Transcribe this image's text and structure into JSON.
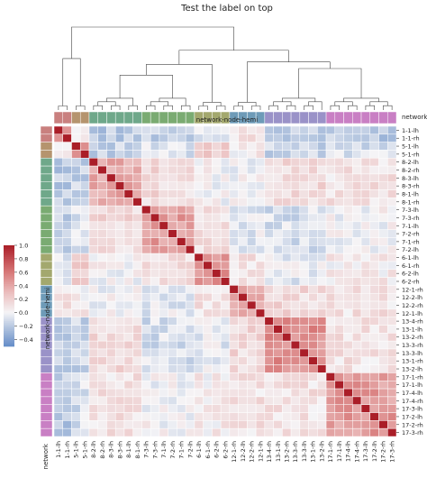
{
  "chart_data": {
    "type": "heatmap",
    "title": "Test the label on top",
    "labels": [
      "1-1-lh",
      "1-1-rh",
      "5-1-lh",
      "5-1-rh",
      "8-2-lh",
      "8-2-rh",
      "8-3-lh",
      "8-3-rh",
      "8-1-lh",
      "8-1-rh",
      "7-3-lh",
      "7-3-rh",
      "7-1-lh",
      "7-2-rh",
      "7-1-rh",
      "7-2-lh",
      "6-1-lh",
      "6-1-rh",
      "6-2-lh",
      "6-2-rh",
      "12-1-rh",
      "12-2-lh",
      "12-2-rh",
      "12-1-lh",
      "13-4-rh",
      "13-1-lh",
      "13-2-rh",
      "13-3-rh",
      "13-3-lh",
      "13-1-rh",
      "13-2-lh",
      "17-1-rh",
      "17-1-lh",
      "17-4-lh",
      "17-4-rh",
      "17-3-lh",
      "17-2-lh",
      "17-2-rh",
      "17-3-rh"
    ],
    "network_ids": [
      1,
      1,
      5,
      5,
      8,
      8,
      8,
      8,
      8,
      8,
      7,
      7,
      7,
      7,
      7,
      7,
      6,
      6,
      6,
      6,
      12,
      12,
      12,
      12,
      13,
      13,
      13,
      13,
      13,
      13,
      13,
      17,
      17,
      17,
      17,
      17,
      17,
      17,
      17
    ],
    "network_colors": {
      "1": "#c9807f",
      "5": "#b5946e",
      "8": "#6fa88a",
      "7": "#7aab72",
      "6": "#a3a86e",
      "12": "#6e9bb8",
      "13": "#9a92c8",
      "17": "#c97fc4"
    },
    "group_label_hemi": "network-node-hemi",
    "group_label_network": "network",
    "colorbar": {
      "min": -0.5,
      "max": 1.0,
      "ticks": [
        1.0,
        0.8,
        0.6,
        0.4,
        0.2,
        0.0,
        -0.2,
        -0.4
      ],
      "tick_labels": [
        "1.0",
        "0.8",
        "0.6",
        "0.4",
        "0.2",
        "0.0",
        "−0.2",
        "−0.4"
      ],
      "colormap": "vlag"
    },
    "correlations": {
      "diagonal": 1.0,
      "same_network": {
        "1": 0.55,
        "5": 0.55,
        "8": 0.4,
        "7": 0.45,
        "6": 0.5,
        "12": 0.4,
        "13": 0.5,
        "17": 0.45
      },
      "between_networks": [
        {
          "a": 1,
          "b": 5,
          "r": 0.1
        },
        {
          "a": 1,
          "b": 8,
          "r": -0.2
        },
        {
          "a": 1,
          "b": 7,
          "r": -0.15
        },
        {
          "a": 1,
          "b": 6,
          "r": -0.1
        },
        {
          "a": 1,
          "b": 12,
          "r": 0.1
        },
        {
          "a": 1,
          "b": 13,
          "r": -0.2
        },
        {
          "a": 1,
          "b": 17,
          "r": -0.2
        },
        {
          "a": 5,
          "b": 8,
          "r": -0.15
        },
        {
          "a": 5,
          "b": 7,
          "r": -0.1
        },
        {
          "a": 5,
          "b": 6,
          "r": 0.2
        },
        {
          "a": 5,
          "b": 12,
          "r": 0.05
        },
        {
          "a": 5,
          "b": 13,
          "r": -0.15
        },
        {
          "a": 5,
          "b": 17,
          "r": -0.1
        },
        {
          "a": 8,
          "b": 7,
          "r": 0.15
        },
        {
          "a": 8,
          "b": 6,
          "r": 0.0
        },
        {
          "a": 8,
          "b": 12,
          "r": 0.0
        },
        {
          "a": 8,
          "b": 13,
          "r": 0.15
        },
        {
          "a": 8,
          "b": 17,
          "r": 0.1
        },
        {
          "a": 7,
          "b": 6,
          "r": 0.1
        },
        {
          "a": 7,
          "b": 12,
          "r": -0.05
        },
        {
          "a": 7,
          "b": 13,
          "r": -0.1
        },
        {
          "a": 7,
          "b": 17,
          "r": 0.0
        },
        {
          "a": 6,
          "b": 12,
          "r": 0.1
        },
        {
          "a": 6,
          "b": 13,
          "r": -0.05
        },
        {
          "a": 6,
          "b": 17,
          "r": 0.05
        },
        {
          "a": 12,
          "b": 13,
          "r": 0.15
        },
        {
          "a": 12,
          "b": 17,
          "r": 0.1
        },
        {
          "a": 13,
          "b": 17,
          "r": 0.1
        }
      ]
    }
  }
}
